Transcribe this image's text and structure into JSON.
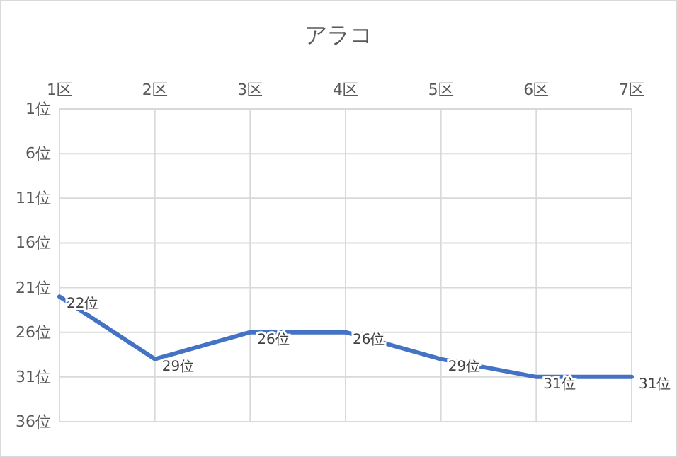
{
  "chart_data": {
    "type": "line",
    "title": "アラコ",
    "categories": [
      "1区",
      "2区",
      "3区",
      "4区",
      "5区",
      "6区",
      "7区"
    ],
    "series": [
      {
        "color": "#4472c4",
        "values": [
          22,
          29,
          26,
          26,
          29,
          31,
          31
        ],
        "value_labels": [
          "22位",
          "29位",
          "26位",
          "26位",
          "29位",
          "31位",
          "31位"
        ]
      }
    ],
    "ylim": [
      36,
      1
    ],
    "yticks": [
      {
        "value": 1,
        "label": "1位"
      },
      {
        "value": 6,
        "label": "6位"
      },
      {
        "value": 11,
        "label": "11位"
      },
      {
        "value": 16,
        "label": "16位"
      },
      {
        "value": 21,
        "label": "21位"
      },
      {
        "value": 26,
        "label": "26位"
      },
      {
        "value": 31,
        "label": "31位"
      },
      {
        "value": 36,
        "label": "36位"
      }
    ],
    "grid": true,
    "marker": "none",
    "line_style": "solid"
  }
}
